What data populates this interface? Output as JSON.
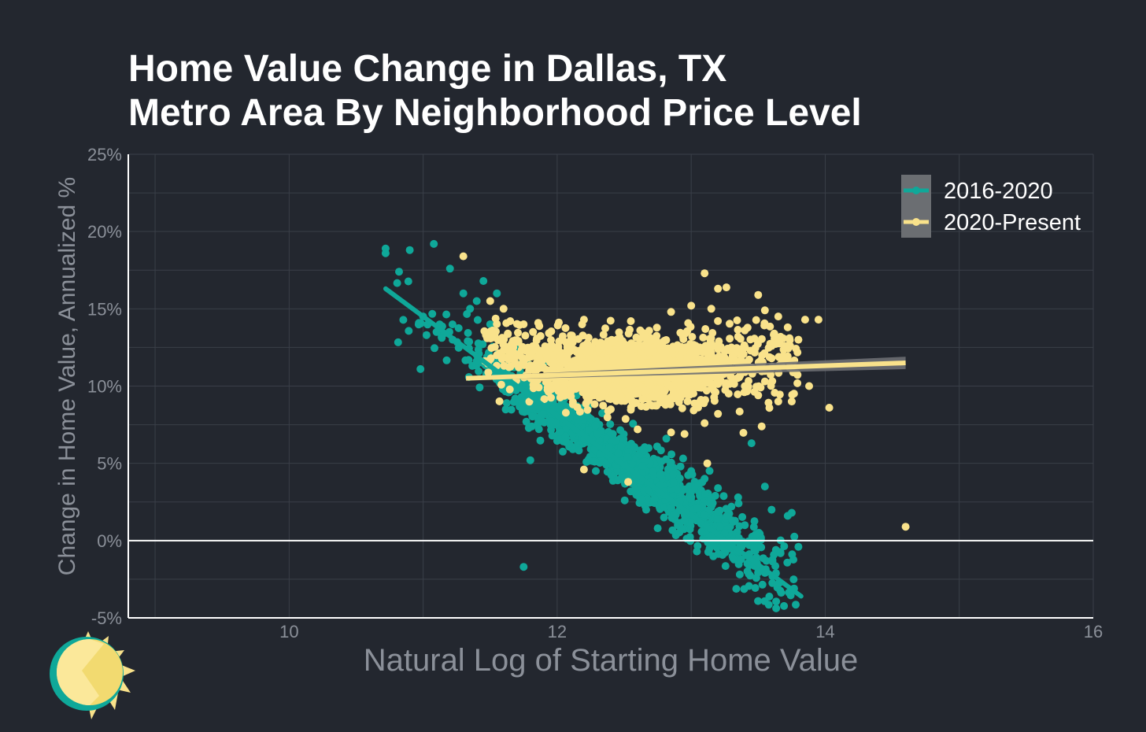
{
  "title_lines": [
    "Home Value Change in Dallas, TX",
    "Metro Area By Neighborhood Price Level"
  ],
  "colors": {
    "background": "#23272f",
    "series1": "#0fa899",
    "series2": "#f9e28b",
    "grid": "#3a3f48",
    "axis_text": "#8b9099",
    "zero_line": "#ffffff"
  },
  "chart_data": {
    "type": "scatter",
    "xlabel": "Natural Log of Starting Home Value",
    "ylabel": "Change in Home Value, Annualized %",
    "xlim": [
      8.8,
      16
    ],
    "ylim": [
      -5,
      25
    ],
    "x_ticks": [
      10,
      12,
      14,
      16
    ],
    "y_ticks": [
      -5,
      0,
      5,
      10,
      15,
      20,
      25
    ],
    "y_tick_format": "percent",
    "zero_line": 0,
    "grid": true,
    "legend_position": "top-right",
    "series": [
      {
        "name": "2016-2020",
        "color": "#0fa899",
        "trend": {
          "x": [
            10.72,
            13.82
          ],
          "y": [
            16.3,
            -3.6
          ]
        },
        "cloud": {
          "x_range": [
            10.7,
            13.8
          ],
          "slope": -6.1,
          "intercept": 81.4,
          "spread": 1.1,
          "density_center": 12.5
        },
        "points": [
          {
            "x": 10.72,
            "y": 18.9
          },
          {
            "x": 10.72,
            "y": 18.6
          },
          {
            "x": 10.9,
            "y": 18.8
          },
          {
            "x": 11.08,
            "y": 19.2
          },
          {
            "x": 11.2,
            "y": 17.6
          },
          {
            "x": 10.82,
            "y": 17.4
          },
          {
            "x": 10.98,
            "y": 11.1
          },
          {
            "x": 11.75,
            "y": -1.7
          },
          {
            "x": 11.8,
            "y": 5.2
          },
          {
            "x": 13.8,
            "y": -0.4
          },
          {
            "x": 13.72,
            "y": 1.6
          },
          {
            "x": 13.75,
            "y": 1.8
          },
          {
            "x": 13.45,
            "y": 6.3
          },
          {
            "x": 13.55,
            "y": 3.5
          },
          {
            "x": 13.6,
            "y": 2.0
          },
          {
            "x": 13.0,
            "y": 4.5
          },
          {
            "x": 13.1,
            "y": 4.0
          },
          {
            "x": 13.2,
            "y": 3.4
          },
          {
            "x": 13.3,
            "y": 2.2
          },
          {
            "x": 13.4,
            "y": 1.0
          },
          {
            "x": 13.48,
            "y": 0.4
          },
          {
            "x": 13.35,
            "y": 2.8
          },
          {
            "x": 12.9,
            "y": 1.0
          },
          {
            "x": 13.25,
            "y": 0.5
          },
          {
            "x": 12.75,
            "y": 0.8
          },
          {
            "x": 12.65,
            "y": 5.8
          },
          {
            "x": 12.3,
            "y": 6.9
          },
          {
            "x": 11.5,
            "y": 14.0
          },
          {
            "x": 11.4,
            "y": 15.5
          },
          {
            "x": 11.3,
            "y": 16.0
          },
          {
            "x": 11.6,
            "y": 13.0
          },
          {
            "x": 11.7,
            "y": 12.5
          },
          {
            "x": 11.9,
            "y": 11.5
          },
          {
            "x": 11.55,
            "y": 16.0
          },
          {
            "x": 11.45,
            "y": 16.8
          },
          {
            "x": 11.35,
            "y": 15.0
          },
          {
            "x": 11.0,
            "y": 14.5
          },
          {
            "x": 11.1,
            "y": 13.5
          },
          {
            "x": 11.22,
            "y": 13.0
          },
          {
            "x": 11.5,
            "y": 11.0
          }
        ]
      },
      {
        "name": "2020-Present",
        "color": "#f9e28b",
        "trend": {
          "x": [
            11.32,
            14.6
          ],
          "y": [
            10.5,
            11.5
          ]
        },
        "cloud": {
          "x_range": [
            11.3,
            14.6
          ],
          "cluster": [
            12.55,
            10.9
          ],
          "spread": 1.0
        },
        "points": [
          {
            "x": 11.3,
            "y": 18.4
          },
          {
            "x": 11.5,
            "y": 15.5
          },
          {
            "x": 11.6,
            "y": 15.0
          },
          {
            "x": 11.65,
            "y": 14.2
          },
          {
            "x": 11.75,
            "y": 14.0
          },
          {
            "x": 11.82,
            "y": 13.5
          },
          {
            "x": 12.2,
            "y": 14.3
          },
          {
            "x": 12.55,
            "y": 14.2
          },
          {
            "x": 13.1,
            "y": 17.3
          },
          {
            "x": 13.2,
            "y": 16.3
          },
          {
            "x": 13.15,
            "y": 15.0
          },
          {
            "x": 13.0,
            "y": 15.2
          },
          {
            "x": 12.85,
            "y": 14.8
          },
          {
            "x": 13.5,
            "y": 15.9
          },
          {
            "x": 13.55,
            "y": 14.9
          },
          {
            "x": 13.65,
            "y": 14.5
          },
          {
            "x": 13.72,
            "y": 13.8
          },
          {
            "x": 13.8,
            "y": 13.0
          },
          {
            "x": 13.85,
            "y": 14.3
          },
          {
            "x": 13.95,
            "y": 14.3
          },
          {
            "x": 13.7,
            "y": 12.6
          },
          {
            "x": 13.6,
            "y": 11.8
          },
          {
            "x": 13.55,
            "y": 10.3
          },
          {
            "x": 13.5,
            "y": 9.4
          },
          {
            "x": 13.4,
            "y": 10.0
          },
          {
            "x": 13.65,
            "y": 9.0
          },
          {
            "x": 13.75,
            "y": 9.0
          },
          {
            "x": 13.88,
            "y": 10.0
          },
          {
            "x": 13.45,
            "y": 11.2
          },
          {
            "x": 14.03,
            "y": 8.6
          },
          {
            "x": 14.6,
            "y": 0.9
          },
          {
            "x": 13.12,
            "y": 5.0
          },
          {
            "x": 12.53,
            "y": 3.8
          },
          {
            "x": 12.2,
            "y": 4.6
          },
          {
            "x": 12.85,
            "y": 7.0
          },
          {
            "x": 12.95,
            "y": 6.9
          },
          {
            "x": 13.1,
            "y": 7.6
          },
          {
            "x": 13.2,
            "y": 8.2
          },
          {
            "x": 12.6,
            "y": 7.2
          },
          {
            "x": 12.4,
            "y": 8.5
          },
          {
            "x": 13.3,
            "y": 12.5
          },
          {
            "x": 13.35,
            "y": 13.2
          },
          {
            "x": 13.25,
            "y": 11.8
          },
          {
            "x": 13.4,
            "y": 13.6
          },
          {
            "x": 13.05,
            "y": 12.2
          }
        ]
      }
    ]
  },
  "logo": {
    "name": "sun-logo"
  }
}
